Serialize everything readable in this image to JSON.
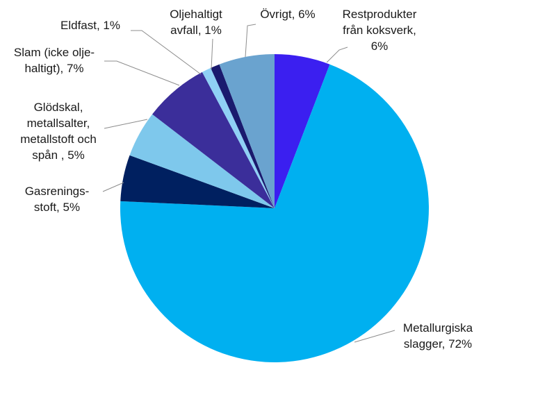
{
  "chart_data": {
    "type": "pie",
    "title": "",
    "start": "12 o'clock",
    "direction": "clockwise",
    "slices": [
      {
        "name": "Restprodukter från koksverk",
        "value": 6,
        "color": "#3b1ff0",
        "label_lines": [
          "Restprodukter",
          "från koksverk,",
          "6%"
        ]
      },
      {
        "name": "Metallurgiska slagger",
        "value": 72,
        "color": "#00b0f0",
        "label_lines": [
          "Metallurgiska",
          "slagger, 72%"
        ]
      },
      {
        "name": "Gasreningsstoft",
        "value": 5,
        "color": "#002060",
        "label_lines": [
          "Gasrenings-",
          "stoft, 5%"
        ]
      },
      {
        "name": "Glödskal, metallsalter, metallstoft och spån",
        "value": 5,
        "color": "#7ec8ec",
        "label_lines": [
          "Glödskal,",
          "metallsalter,",
          "metallstoft och",
          "spån , 5%"
        ]
      },
      {
        "name": "Slam (icke oljehaltigt)",
        "value": 7,
        "color": "#3b2e9a",
        "label_lines": [
          "Slam (icke olje-",
          "haltigt), 7%"
        ]
      },
      {
        "name": "Eldfast",
        "value": 1,
        "color": "#8fd0f5",
        "label_lines": [
          "Eldfast, 1%"
        ]
      },
      {
        "name": "Oljehaltigt avfall",
        "value": 1,
        "color": "#1a1a6e",
        "label_lines": [
          "Oljehaltigt",
          "avfall, 1%"
        ]
      },
      {
        "name": "Övrigt",
        "value": 6,
        "color": "#6aa3cf",
        "label_lines": [
          "Övrigt, 6%"
        ]
      }
    ]
  }
}
